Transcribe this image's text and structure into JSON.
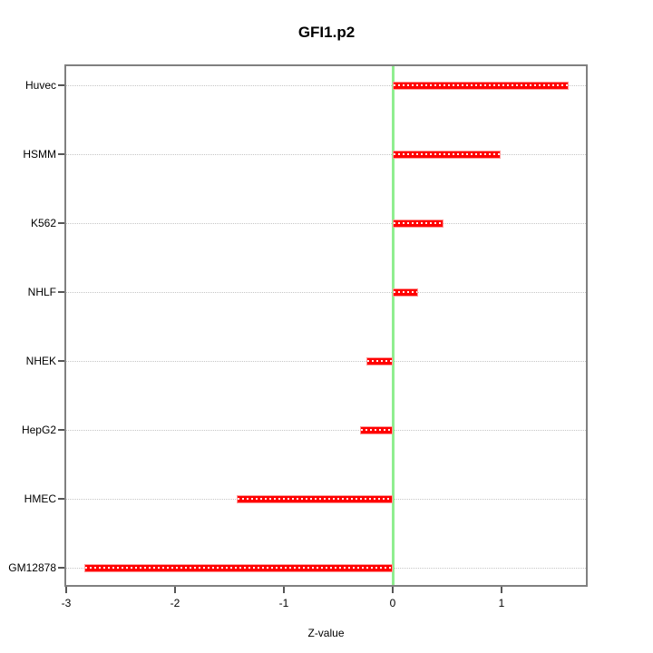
{
  "title": "GFI1.p2",
  "xlabel": "Z-value",
  "chart_data": {
    "type": "bar",
    "orientation": "horizontal",
    "title": "GFI1.p2",
    "xlabel": "Z-value",
    "ylabel": "",
    "categories": [
      "Huvec",
      "HSMM",
      "K562",
      "NHLF",
      "NHEK",
      "HepG2",
      "HMEC",
      "GM12878"
    ],
    "values": [
      1.62,
      0.99,
      0.47,
      0.23,
      -0.24,
      -0.3,
      -1.43,
      -2.83
    ],
    "xlim": [
      -3.02,
      1.79
    ],
    "xticks": [
      -3,
      -2,
      -1,
      0,
      1
    ],
    "grid": "horizontal-dotted",
    "legend": "none",
    "colors": {
      "bar_fill": "#ff0000",
      "bar_border": "#ff9898",
      "zero_line": "#90ee90",
      "box_border": "#808080",
      "gridline": "#c6c6c6",
      "text": "#000000"
    }
  }
}
